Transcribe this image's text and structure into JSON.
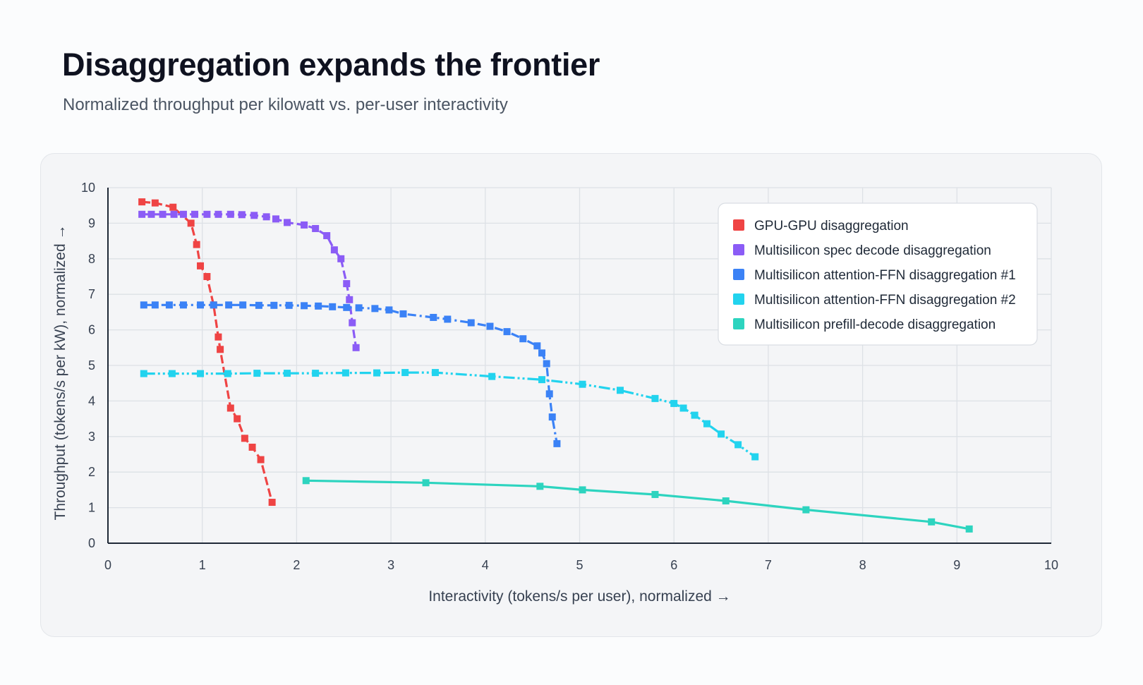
{
  "title": "Disaggregation expands the frontier",
  "subtitle": "Normalized throughput per kilowatt vs. per-user interactivity",
  "chart_data": {
    "type": "line",
    "xlabel": "Interactivity (tokens/s per user), normalized →",
    "ylabel": "Throughput (tokens/s per kW), normalized →",
    "xlim": [
      0,
      10
    ],
    "ylim": [
      0,
      10
    ],
    "xticks": [
      0,
      1,
      2,
      3,
      4,
      5,
      6,
      7,
      8,
      9,
      10
    ],
    "yticks": [
      0,
      1,
      2,
      3,
      4,
      5,
      6,
      7,
      8,
      9,
      10
    ],
    "grid": true,
    "legend_position": "top-right",
    "series": [
      {
        "name": "GPU-GPU disaggregation",
        "color": "#ef4444",
        "dash": "dashed",
        "points": [
          [
            0.36,
            9.6
          ],
          [
            0.5,
            9.57
          ],
          [
            0.69,
            9.45
          ],
          [
            0.88,
            9.0
          ],
          [
            0.94,
            8.4
          ],
          [
            0.98,
            7.8
          ],
          [
            1.05,
            7.5
          ],
          [
            1.12,
            6.7
          ],
          [
            1.17,
            5.8
          ],
          [
            1.19,
            5.45
          ],
          [
            1.3,
            3.8
          ],
          [
            1.37,
            3.5
          ],
          [
            1.45,
            2.95
          ],
          [
            1.53,
            2.7
          ],
          [
            1.62,
            2.35
          ],
          [
            1.74,
            1.15
          ]
        ]
      },
      {
        "name": "Multisilicon spec decode disaggregation",
        "color": "#8b5cf6",
        "dash": "dashed",
        "points": [
          [
            0.36,
            9.25
          ],
          [
            0.46,
            9.25
          ],
          [
            0.58,
            9.25
          ],
          [
            0.7,
            9.25
          ],
          [
            0.8,
            9.25
          ],
          [
            0.92,
            9.25
          ],
          [
            1.05,
            9.25
          ],
          [
            1.17,
            9.25
          ],
          [
            1.3,
            9.25
          ],
          [
            1.42,
            9.24
          ],
          [
            1.55,
            9.22
          ],
          [
            1.68,
            9.18
          ],
          [
            1.78,
            9.12
          ],
          [
            1.9,
            9.02
          ],
          [
            2.08,
            8.95
          ],
          [
            2.2,
            8.85
          ],
          [
            2.32,
            8.65
          ],
          [
            2.4,
            8.25
          ],
          [
            2.47,
            8.0
          ],
          [
            2.53,
            7.3
          ],
          [
            2.56,
            6.85
          ],
          [
            2.59,
            6.2
          ],
          [
            2.63,
            5.5
          ]
        ]
      },
      {
        "name": "Multisilicon attention-FFN disaggregation #1",
        "color": "#3b82f6",
        "dash": "dashdot",
        "points": [
          [
            0.38,
            6.7
          ],
          [
            0.5,
            6.7
          ],
          [
            0.65,
            6.7
          ],
          [
            0.8,
            6.7
          ],
          [
            0.98,
            6.7
          ],
          [
            1.12,
            6.7
          ],
          [
            1.28,
            6.7
          ],
          [
            1.43,
            6.7
          ],
          [
            1.6,
            6.69
          ],
          [
            1.76,
            6.69
          ],
          [
            1.92,
            6.69
          ],
          [
            2.08,
            6.68
          ],
          [
            2.23,
            6.67
          ],
          [
            2.38,
            6.65
          ],
          [
            2.53,
            6.63
          ],
          [
            2.66,
            6.62
          ],
          [
            2.83,
            6.6
          ],
          [
            2.98,
            6.56
          ],
          [
            3.13,
            6.45
          ],
          [
            3.45,
            6.35
          ],
          [
            3.6,
            6.3
          ],
          [
            3.85,
            6.2
          ],
          [
            4.05,
            6.1
          ],
          [
            4.23,
            5.95
          ],
          [
            4.4,
            5.75
          ],
          [
            4.55,
            5.55
          ],
          [
            4.6,
            5.35
          ],
          [
            4.65,
            5.05
          ],
          [
            4.68,
            4.2
          ],
          [
            4.71,
            3.55
          ],
          [
            4.76,
            2.8
          ]
        ]
      },
      {
        "name": "Multisilicon attention-FFN disaggregation #2",
        "color": "#22d3ee",
        "dash": "mixed",
        "points": [
          [
            0.38,
            4.77
          ],
          [
            0.68,
            4.77
          ],
          [
            0.98,
            4.77
          ],
          [
            1.27,
            4.77
          ],
          [
            1.58,
            4.78
          ],
          [
            1.9,
            4.78
          ],
          [
            2.2,
            4.78
          ],
          [
            2.52,
            4.79
          ],
          [
            2.85,
            4.79
          ],
          [
            3.15,
            4.8
          ],
          [
            3.47,
            4.8
          ],
          [
            4.07,
            4.69
          ],
          [
            4.6,
            4.6
          ],
          [
            5.03,
            4.47
          ],
          [
            5.43,
            4.3
          ],
          [
            5.8,
            4.07
          ],
          [
            6.0,
            3.93
          ],
          [
            6.1,
            3.8
          ],
          [
            6.22,
            3.6
          ],
          [
            6.35,
            3.36
          ],
          [
            6.5,
            3.07
          ],
          [
            6.68,
            2.77
          ],
          [
            6.86,
            2.43
          ]
        ]
      },
      {
        "name": "Multisilicon prefill-decode disaggregation",
        "color": "#2dd4bf",
        "dash": "solid",
        "points": [
          [
            2.1,
            1.76
          ],
          [
            3.37,
            1.7
          ],
          [
            4.58,
            1.6
          ],
          [
            5.03,
            1.5
          ],
          [
            5.8,
            1.37
          ],
          [
            6.55,
            1.19
          ],
          [
            7.4,
            0.94
          ],
          [
            8.73,
            0.6
          ],
          [
            9.13,
            0.4
          ]
        ]
      }
    ]
  }
}
